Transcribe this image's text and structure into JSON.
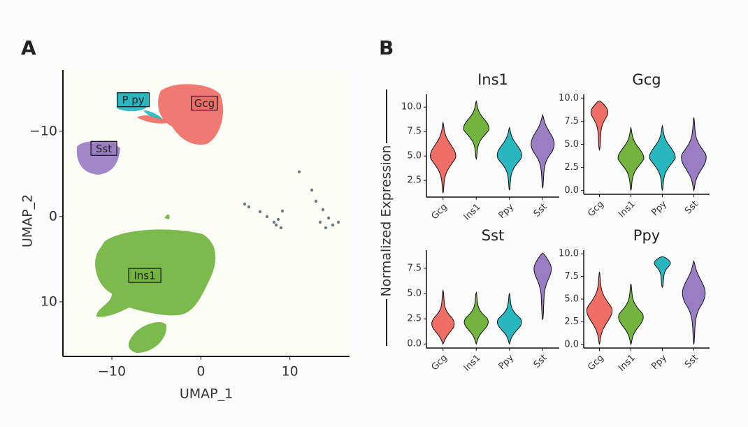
{
  "panel_labels": [
    "A",
    "B"
  ],
  "shared_ylabel": "Normalized Expression",
  "chart_data": [
    {
      "type": "scatter",
      "xlabel": "UMAP_1",
      "ylabel": "UMAP_2",
      "xlim": [
        -15.5,
        16.7
      ],
      "ylim": [
        -17.2,
        16.4
      ],
      "y_inverted": true,
      "xticks": [
        {
          "value": -10,
          "label": "−10"
        },
        0,
        10
      ],
      "yticks": [
        {
          "value": -10,
          "label": "−10"
        },
        0,
        10
      ],
      "series": [
        {
          "name": "Gcg",
          "color": "#ef6f67",
          "x": 0.4,
          "y": -13.3
        },
        {
          "name": "P py",
          "color": "#28b6bf",
          "x": -7.6,
          "y": -13.7
        },
        {
          "name": "Sst",
          "color": "#9a7ec4",
          "x": -10.9,
          "y": -8.0
        },
        {
          "name": "Ins1",
          "color": "#72b43e",
          "x": -6.3,
          "y": 6.9
        }
      ]
    },
    {
      "type": "violin",
      "title": "Ins1",
      "categories": [
        "Gcg",
        "Ins1",
        "Ppy",
        "Sst"
      ],
      "colors": [
        "#ef6f67",
        "#72b43e",
        "#28b6bf",
        "#9a7ec4"
      ],
      "ylim": [
        0.8,
        11.3
      ],
      "yticks": [
        2.5,
        {
          "value": 5,
          "label": "5.0"
        },
        7.5,
        {
          "value": 10,
          "label": "10.0"
        }
      ],
      "values": [
        5.2,
        8.0,
        5.3,
        6.5
      ],
      "min": [
        1.2,
        4.7,
        1.5,
        1.7
      ],
      "max": [
        8.4,
        10.6,
        7.9,
        9.2
      ]
    },
    {
      "type": "violin",
      "title": "Gcg",
      "categories": [
        "Gcg",
        "Ins1",
        "Ppy",
        "Sst"
      ],
      "colors": [
        "#ef6f67",
        "#72b43e",
        "#28b6bf",
        "#9a7ec4"
      ],
      "ylim": [
        -0.4,
        10.4
      ],
      "yticks": [
        {
          "value": 0,
          "label": "0.0"
        },
        2.5,
        {
          "value": 5,
          "label": "5.0"
        },
        7.5,
        {
          "value": 10,
          "label": "10.0"
        }
      ],
      "values": [
        8.8,
        3.7,
        3.8,
        3.3
      ],
      "min": [
        4.4,
        0,
        0,
        0
      ],
      "max": [
        9.7,
        6.8,
        7.0,
        7.9
      ]
    },
    {
      "type": "violin",
      "title": "Sst",
      "categories": [
        "Gcg",
        "Ins1",
        "Ppy",
        "Sst"
      ],
      "colors": [
        "#ef6f67",
        "#72b43e",
        "#28b6bf",
        "#9a7ec4"
      ],
      "ylim": [
        -0.4,
        9.3
      ],
      "yticks": [
        {
          "value": 0,
          "label": "0.0"
        },
        2.5,
        {
          "value": 5,
          "label": "5.0"
        },
        7.5
      ],
      "values": [
        1.8,
        2.0,
        2.0,
        7.8
      ],
      "min": [
        0,
        0,
        0,
        2.4
      ],
      "max": [
        5.3,
        5.1,
        5.0,
        9.0
      ]
    },
    {
      "type": "violin",
      "title": "Ppy",
      "categories": [
        "Gcg",
        "Ins1",
        "Ppy",
        "Sst"
      ],
      "colors": [
        "#ef6f67",
        "#72b43e",
        "#28b6bf",
        "#9a7ec4"
      ],
      "ylim": [
        -0.4,
        10.4
      ],
      "yticks": [
        {
          "value": 0,
          "label": "0.0"
        },
        2.5,
        {
          "value": 5,
          "label": "5.0"
        },
        7.5,
        {
          "value": 10,
          "label": "10.0"
        }
      ],
      "values": [
        3.5,
        2.8,
        9.2,
        6.0
      ],
      "min": [
        0,
        0,
        6.3,
        0
      ],
      "max": [
        8.0,
        6.7,
        9.7,
        9.2
      ]
    }
  ]
}
